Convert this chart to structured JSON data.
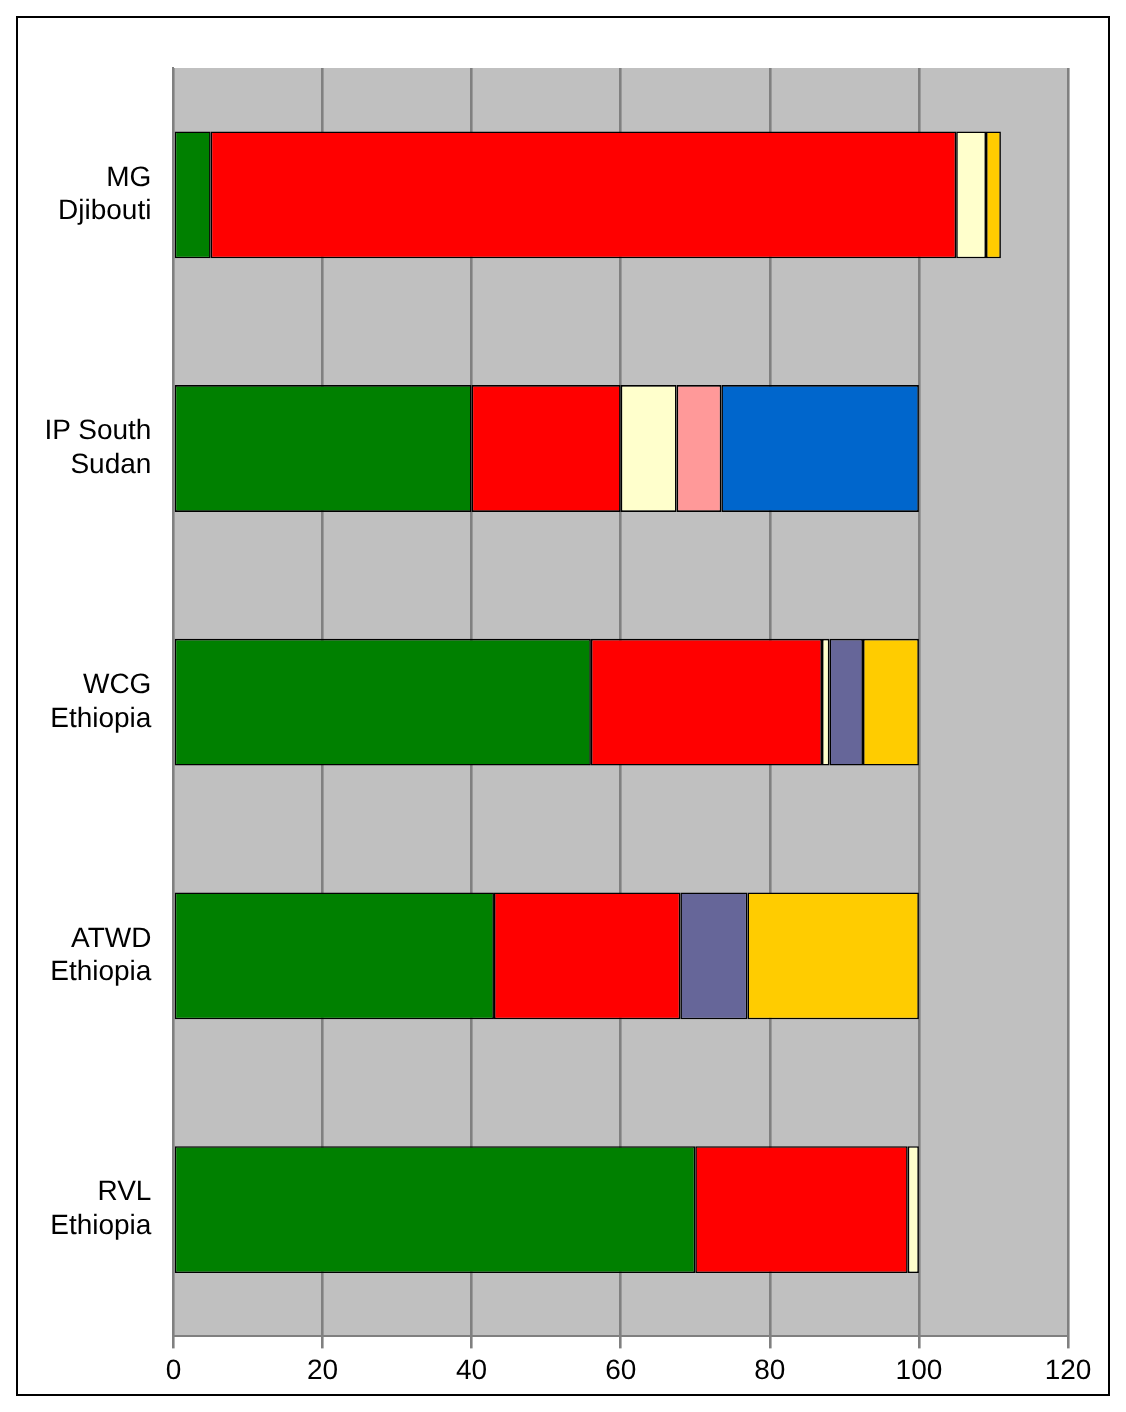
{
  "chart_data": {
    "type": "bar",
    "orientation": "horizontal",
    "stacked": true,
    "categories": [
      "MG Djibouti",
      "IP South Sudan",
      "WCG Ethiopia",
      "ATWD Ethiopia",
      "RVL Ethiopia"
    ],
    "series": [
      {
        "color": "#008000",
        "values": [
          5,
          40,
          56,
          43,
          70
        ]
      },
      {
        "color": "#ff0000",
        "values": [
          100,
          20,
          31,
          25,
          28.5
        ]
      },
      {
        "color": "#ffffcc",
        "values": [
          4,
          7.5,
          1,
          null,
          1.5
        ]
      },
      {
        "color": "#ff9999",
        "values": [
          null,
          6,
          null,
          null,
          null
        ]
      },
      {
        "color": "#666699",
        "values": [
          null,
          null,
          4.5,
          9,
          null
        ]
      },
      {
        "color": "#0066cc",
        "values": [
          null,
          26.5,
          null,
          null,
          null
        ]
      },
      {
        "color": "#ffcc00",
        "values": [
          2,
          null,
          7.5,
          23,
          null
        ]
      }
    ],
    "xlim": [
      0,
      120
    ],
    "xticks": [
      0,
      20,
      40,
      60,
      80,
      100,
      120
    ],
    "grid": "x",
    "legend": false
  }
}
